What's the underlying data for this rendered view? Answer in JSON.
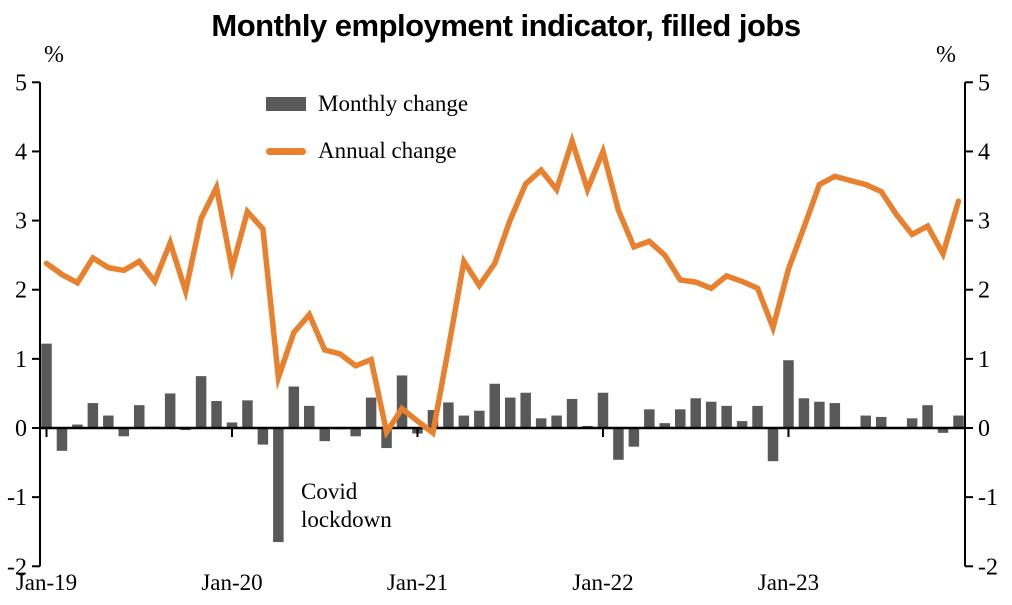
{
  "chart": {
    "title": "Monthly employment indicator, filled jobs",
    "unit_left": "%",
    "unit_right": "%",
    "legend": [
      {
        "label": "Monthly change",
        "type": "bar",
        "color": "#595959"
      },
      {
        "label": "Annual change",
        "type": "line",
        "color": "#E8802D"
      }
    ],
    "annotation": {
      "line1": "Covid",
      "line2": "lockdown",
      "points_to": "Apr-20"
    }
  },
  "chart_data": {
    "type": "bar+line",
    "title": "Monthly employment indicator, filled jobs",
    "ylabel": "%",
    "ylim": [
      -2,
      5
    ],
    "y_ticks": [
      "5",
      "4",
      "3",
      "2",
      "1",
      "0",
      "-1",
      "-2"
    ],
    "x_tick_labels": [
      "Jan-19",
      "Jan-20",
      "Jan-21",
      "Jan-22",
      "Jan-23"
    ],
    "x_tick_month_index": [
      0,
      12,
      24,
      36,
      48
    ],
    "grid": false,
    "legend_position": "top-left-inside",
    "months": [
      "Jan-19",
      "Feb-19",
      "Mar-19",
      "Apr-19",
      "May-19",
      "Jun-19",
      "Jul-19",
      "Aug-19",
      "Sep-19",
      "Oct-19",
      "Nov-19",
      "Dec-19",
      "Jan-20",
      "Feb-20",
      "Mar-20",
      "Apr-20",
      "May-20",
      "Jun-20",
      "Jul-20",
      "Aug-20",
      "Sep-20",
      "Oct-20",
      "Nov-20",
      "Dec-20",
      "Jan-21",
      "Feb-21",
      "Mar-21",
      "Apr-21",
      "May-21",
      "Jun-21",
      "Jul-21",
      "Aug-21",
      "Sep-21",
      "Oct-21",
      "Nov-21",
      "Dec-21",
      "Jan-22",
      "Feb-22",
      "Mar-22",
      "Apr-22",
      "May-22",
      "Jun-22",
      "Jul-22",
      "Aug-22",
      "Sep-22",
      "Oct-22",
      "Nov-22",
      "Dec-22",
      "Jan-23",
      "Feb-23",
      "Mar-23",
      "Apr-23",
      "May-23",
      "Jun-23",
      "Jul-23",
      "Aug-23",
      "Sep-23",
      "Oct-23",
      "Nov-23",
      "Dec-23"
    ],
    "series": [
      {
        "name": "Monthly change",
        "type": "bar",
        "color": "#595959",
        "values": [
          1.22,
          -0.33,
          0.05,
          0.36,
          0.18,
          -0.12,
          0.33,
          0.02,
          0.5,
          -0.03,
          0.75,
          0.39,
          0.08,
          0.4,
          -0.24,
          -1.65,
          0.6,
          0.32,
          -0.19,
          -0.02,
          -0.12,
          0.44,
          -0.29,
          0.76,
          -0.08,
          0.26,
          0.37,
          0.18,
          0.25,
          0.64,
          0.44,
          0.51,
          0.14,
          0.18,
          0.42,
          0.03,
          0.51,
          -0.46,
          -0.27,
          0.27,
          0.07,
          0.27,
          0.43,
          0.38,
          0.32,
          0.1,
          0.32,
          -0.48,
          0.98,
          0.43,
          0.38,
          0.36,
          0.0,
          0.18,
          0.16,
          0.0,
          0.14,
          0.33,
          -0.07,
          0.18
        ]
      },
      {
        "name": "Annual change",
        "type": "line",
        "color": "#E8802D",
        "values": [
          2.38,
          2.22,
          2.1,
          2.46,
          2.32,
          2.28,
          2.41,
          2.12,
          2.68,
          1.98,
          3.03,
          3.48,
          2.31,
          3.13,
          2.88,
          0.73,
          1.38,
          1.64,
          1.13,
          1.07,
          0.9,
          0.99,
          -0.06,
          0.28,
          0.1,
          -0.07,
          1.15,
          2.41,
          2.06,
          2.38,
          3.01,
          3.53,
          3.73,
          3.45,
          4.15,
          3.45,
          4.0,
          3.15,
          2.62,
          2.7,
          2.5,
          2.14,
          2.11,
          2.02,
          2.2,
          2.12,
          2.02,
          1.45,
          2.3,
          2.9,
          3.52,
          3.64,
          3.58,
          3.52,
          3.42,
          3.08,
          2.8,
          2.92,
          2.52,
          3.28
        ]
      }
    ]
  }
}
